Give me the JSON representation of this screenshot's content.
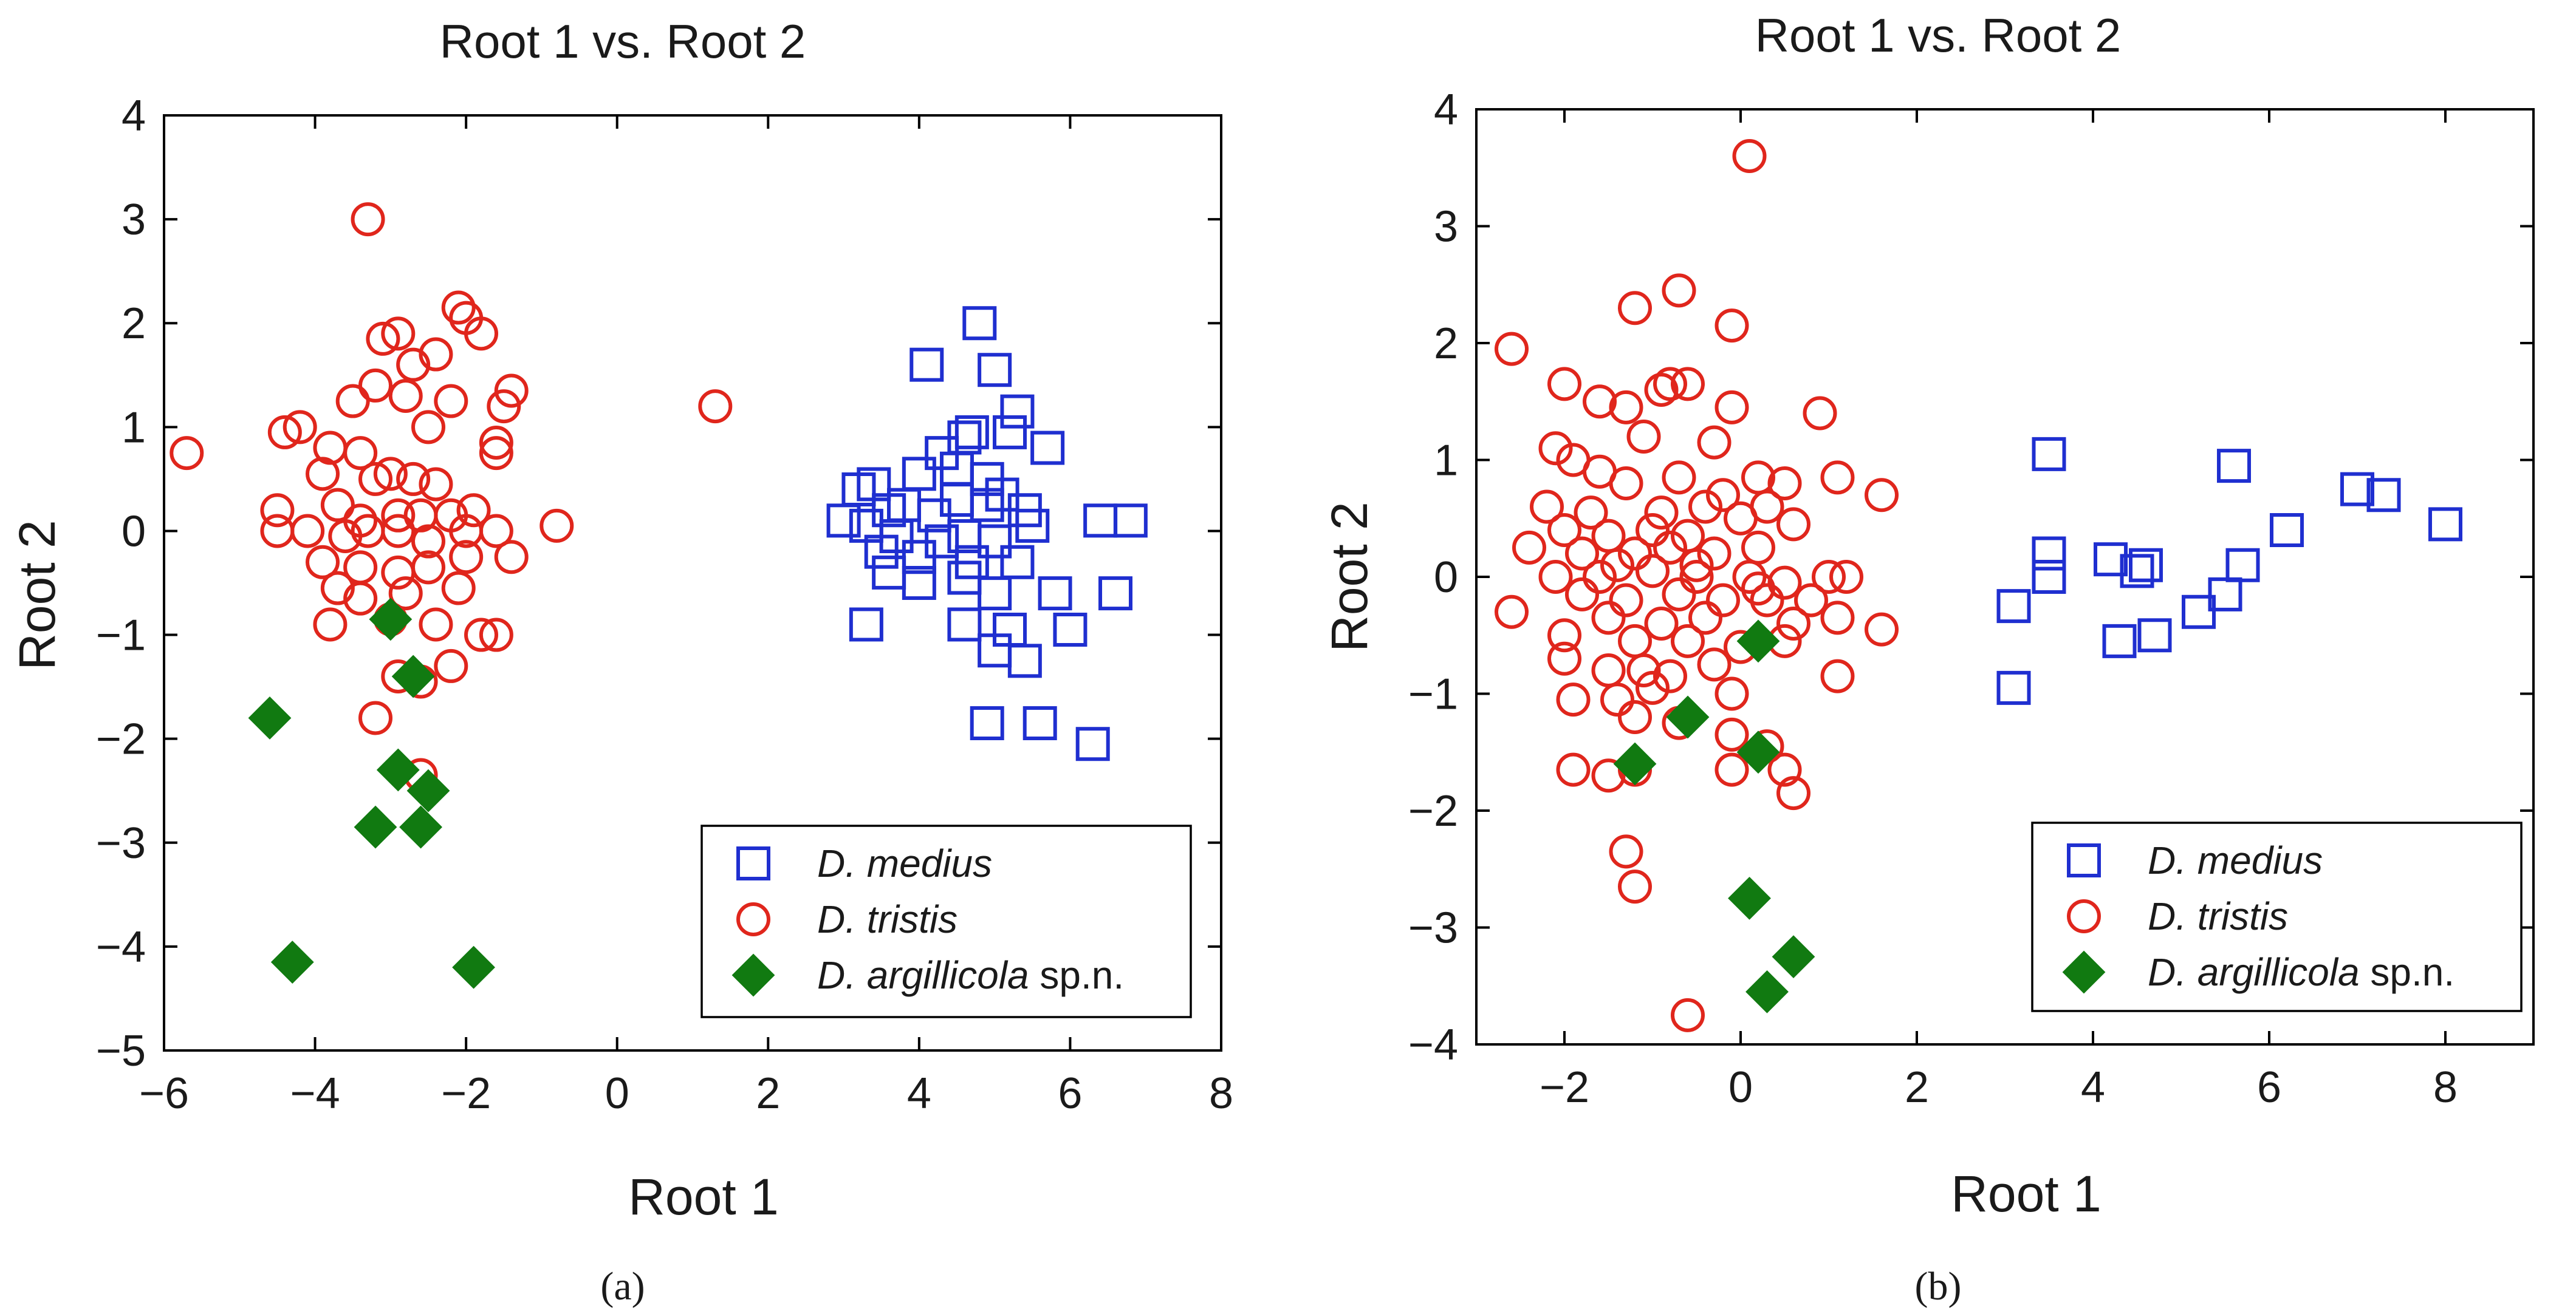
{
  "chart_data": [
    {
      "type": "scatter",
      "title": "Root 1 vs. Root 2",
      "xlabel": "Root 1",
      "ylabel": "Root 2",
      "panel_label": "(a)",
      "xlim": [
        -6,
        8
      ],
      "ylim": [
        -5,
        4
      ],
      "xticks": [
        -6,
        -4,
        -2,
        0,
        2,
        4,
        6,
        8
      ],
      "yticks": [
        -5,
        -4,
        -3,
        -2,
        -1,
        0,
        1,
        2,
        3,
        4
      ],
      "xtick_labels": [
        "−6",
        "−4",
        "−2",
        "0",
        "2",
        "4",
        "6",
        "8"
      ],
      "ytick_labels": [
        "−5",
        "−4",
        "−3",
        "−2",
        "−1",
        "0",
        "1",
        "2",
        "3",
        "4"
      ],
      "legend_position": "bottom-right",
      "series": [
        {
          "name": "D. medius",
          "name_italic": "D. medius",
          "name_suffix": "",
          "marker": "square",
          "color": "#1f2fd0",
          "points": [
            [
              4.8,
              2.0
            ],
            [
              4.1,
              1.6
            ],
            [
              5.0,
              1.55
            ],
            [
              5.3,
              1.15
            ],
            [
              4.6,
              0.9
            ],
            [
              4.3,
              0.75
            ],
            [
              5.2,
              0.95
            ],
            [
              5.7,
              0.8
            ],
            [
              4.5,
              0.6
            ],
            [
              4.9,
              0.5
            ],
            [
              4.0,
              0.55
            ],
            [
              3.4,
              0.45
            ],
            [
              3.2,
              0.4
            ],
            [
              3.8,
              0.25
            ],
            [
              3.6,
              0.2
            ],
            [
              4.2,
              0.15
            ],
            [
              4.9,
              0.25
            ],
            [
              5.1,
              0.35
            ],
            [
              5.4,
              0.2
            ],
            [
              5.5,
              0.05
            ],
            [
              3.0,
              0.1
            ],
            [
              3.3,
              0.05
            ],
            [
              3.7,
              -0.05
            ],
            [
              4.3,
              -0.1
            ],
            [
              4.6,
              -0.05
            ],
            [
              5.0,
              -0.1
            ],
            [
              3.5,
              -0.2
            ],
            [
              4.0,
              -0.25
            ],
            [
              4.7,
              -0.3
            ],
            [
              5.3,
              -0.3
            ],
            [
              3.6,
              -0.4
            ],
            [
              4.0,
              -0.5
            ],
            [
              4.6,
              -0.45
            ],
            [
              5.0,
              -0.6
            ],
            [
              5.8,
              -0.6
            ],
            [
              4.6,
              -0.9
            ],
            [
              5.2,
              -0.95
            ],
            [
              6.0,
              -0.95
            ],
            [
              6.6,
              -0.6
            ],
            [
              3.3,
              -0.9
            ],
            [
              5.0,
              -1.15
            ],
            [
              5.4,
              -1.25
            ],
            [
              4.9,
              -1.85
            ],
            [
              5.6,
              -1.85
            ],
            [
              6.3,
              -2.05
            ],
            [
              6.4,
              0.1
            ],
            [
              6.8,
              0.1
            ],
            [
              4.7,
              0.95
            ],
            [
              4.5,
              0.3
            ]
          ]
        },
        {
          "name": "D. tristis",
          "name_italic": "D. tristis",
          "name_suffix": "",
          "marker": "circle",
          "color": "#e0261c",
          "points": [
            [
              -3.3,
              3.0
            ],
            [
              -2.1,
              2.15
            ],
            [
              -2.0,
              2.05
            ],
            [
              -2.9,
              1.9
            ],
            [
              -3.1,
              1.85
            ],
            [
              -1.8,
              1.9
            ],
            [
              -2.7,
              1.6
            ],
            [
              -3.2,
              1.4
            ],
            [
              -3.5,
              1.25
            ],
            [
              -2.8,
              1.3
            ],
            [
              -2.2,
              1.25
            ],
            [
              -1.4,
              1.35
            ],
            [
              -1.5,
              1.2
            ],
            [
              -4.4,
              0.95
            ],
            [
              -4.2,
              1.0
            ],
            [
              -3.8,
              0.8
            ],
            [
              -3.4,
              0.75
            ],
            [
              -2.5,
              1.0
            ],
            [
              -1.6,
              0.85
            ],
            [
              -1.6,
              0.75
            ],
            [
              -5.7,
              0.75
            ],
            [
              -3.9,
              0.55
            ],
            [
              -3.2,
              0.5
            ],
            [
              -3.0,
              0.55
            ],
            [
              -2.7,
              0.5
            ],
            [
              -2.4,
              0.45
            ],
            [
              -1.9,
              0.2
            ],
            [
              -4.5,
              0.2
            ],
            [
              -3.7,
              0.25
            ],
            [
              -3.4,
              0.1
            ],
            [
              -2.9,
              0.15
            ],
            [
              -2.6,
              0.15
            ],
            [
              -2.2,
              0.15
            ],
            [
              -0.8,
              0.05
            ],
            [
              -4.5,
              0.0
            ],
            [
              -4.1,
              0.0
            ],
            [
              -3.6,
              -0.05
            ],
            [
              -3.3,
              0.0
            ],
            [
              -2.9,
              0.0
            ],
            [
              -2.5,
              -0.1
            ],
            [
              -1.6,
              0.0
            ],
            [
              -1.4,
              -0.25
            ],
            [
              -3.9,
              -0.3
            ],
            [
              -3.4,
              -0.35
            ],
            [
              -2.9,
              -0.4
            ],
            [
              -2.5,
              -0.35
            ],
            [
              -2.0,
              -0.25
            ],
            [
              -3.7,
              -0.55
            ],
            [
              -3.4,
              -0.65
            ],
            [
              -2.8,
              -0.6
            ],
            [
              -2.1,
              -0.55
            ],
            [
              -3.8,
              -0.9
            ],
            [
              -3.0,
              -0.85
            ],
            [
              -2.4,
              -0.9
            ],
            [
              -1.8,
              -1.0
            ],
            [
              -1.6,
              -1.0
            ],
            [
              -2.9,
              -1.4
            ],
            [
              -2.6,
              -1.45
            ],
            [
              -2.2,
              -1.3
            ],
            [
              -3.2,
              -1.8
            ],
            [
              -2.6,
              -2.35
            ],
            [
              1.3,
              1.2
            ],
            [
              -2.4,
              1.7
            ],
            [
              -2.0,
              0.0
            ]
          ]
        },
        {
          "name": "D. argillicola sp.n.",
          "name_italic": "D. argillicola",
          "name_suffix": " sp.n.",
          "marker": "diamond",
          "color": "#117a11",
          "points": [
            [
              -3.0,
              -0.85
            ],
            [
              -2.7,
              -1.4
            ],
            [
              -4.6,
              -1.8
            ],
            [
              -2.9,
              -2.3
            ],
            [
              -2.5,
              -2.5
            ],
            [
              -3.2,
              -2.85
            ],
            [
              -2.6,
              -2.85
            ],
            [
              -4.3,
              -4.15
            ],
            [
              -1.9,
              -4.2
            ]
          ]
        }
      ]
    },
    {
      "type": "scatter",
      "title": "Root 1 vs. Root 2",
      "xlabel": "Root 1",
      "ylabel": "Root 2",
      "panel_label": "(b)",
      "xlim": [
        -3,
        9
      ],
      "ylim": [
        -4,
        4
      ],
      "xticks": [
        -2,
        0,
        2,
        4,
        6,
        8
      ],
      "yticks": [
        -4,
        -3,
        -2,
        -1,
        0,
        1,
        2,
        3,
        4
      ],
      "xtick_labels": [
        "−2",
        "0",
        "2",
        "4",
        "6",
        "8"
      ],
      "ytick_labels": [
        "−4",
        "−3",
        "−2",
        "−1",
        "0",
        "1",
        "2",
        "3",
        "4"
      ],
      "legend_position": "bottom-right",
      "series": [
        {
          "name": "D. medius",
          "name_italic": "D. medius",
          "name_suffix": "",
          "marker": "square",
          "color": "#1f2fd0",
          "points": [
            [
              3.5,
              1.05
            ],
            [
              5.6,
              0.95
            ],
            [
              7.0,
              0.75
            ],
            [
              7.3,
              0.7
            ],
            [
              8.0,
              0.45
            ],
            [
              6.2,
              0.4
            ],
            [
              3.5,
              0.2
            ],
            [
              4.2,
              0.15
            ],
            [
              4.6,
              0.1
            ],
            [
              5.7,
              0.1
            ],
            [
              3.5,
              0.0
            ],
            [
              4.5,
              0.05
            ],
            [
              5.5,
              -0.15
            ],
            [
              3.1,
              -0.25
            ],
            [
              5.2,
              -0.3
            ],
            [
              4.7,
              -0.5
            ],
            [
              4.3,
              -0.55
            ],
            [
              3.1,
              -0.95
            ]
          ]
        },
        {
          "name": "D. tristis",
          "name_italic": "D. tristis",
          "name_suffix": "",
          "marker": "circle",
          "color": "#e0261c",
          "points": [
            [
              0.1,
              3.6
            ],
            [
              -0.7,
              2.45
            ],
            [
              -1.2,
              2.3
            ],
            [
              -0.1,
              2.15
            ],
            [
              -2.6,
              1.95
            ],
            [
              -2.0,
              1.65
            ],
            [
              -0.8,
              1.65
            ],
            [
              -0.6,
              1.65
            ],
            [
              -1.6,
              1.5
            ],
            [
              -1.3,
              1.45
            ],
            [
              -0.9,
              1.6
            ],
            [
              -0.1,
              1.45
            ],
            [
              0.9,
              1.4
            ],
            [
              -1.1,
              1.2
            ],
            [
              -2.1,
              1.1
            ],
            [
              -1.9,
              1.0
            ],
            [
              -0.3,
              1.15
            ],
            [
              -1.6,
              0.9
            ],
            [
              -0.7,
              0.85
            ],
            [
              0.2,
              0.85
            ],
            [
              1.1,
              0.85
            ],
            [
              -1.3,
              0.8
            ],
            [
              0.5,
              0.8
            ],
            [
              -2.2,
              0.6
            ],
            [
              -1.7,
              0.55
            ],
            [
              -0.9,
              0.55
            ],
            [
              -0.4,
              0.6
            ],
            [
              0.3,
              0.6
            ],
            [
              1.6,
              0.7
            ],
            [
              -2.0,
              0.4
            ],
            [
              -1.5,
              0.35
            ],
            [
              -1.0,
              0.4
            ],
            [
              -0.6,
              0.35
            ],
            [
              0.0,
              0.5
            ],
            [
              0.6,
              0.45
            ],
            [
              -2.4,
              0.25
            ],
            [
              -1.8,
              0.2
            ],
            [
              -1.2,
              0.2
            ],
            [
              -0.8,
              0.25
            ],
            [
              -0.3,
              0.2
            ],
            [
              0.2,
              0.25
            ],
            [
              -2.1,
              0.0
            ],
            [
              -1.6,
              0.0
            ],
            [
              -1.0,
              0.05
            ],
            [
              -0.5,
              0.0
            ],
            [
              0.1,
              0.0
            ],
            [
              0.5,
              -0.05
            ],
            [
              1.0,
              0.0
            ],
            [
              1.2,
              0.0
            ],
            [
              -1.8,
              -0.15
            ],
            [
              -1.3,
              -0.2
            ],
            [
              -0.7,
              -0.15
            ],
            [
              -0.2,
              -0.2
            ],
            [
              0.3,
              -0.2
            ],
            [
              0.8,
              -0.2
            ],
            [
              -2.6,
              -0.3
            ],
            [
              -1.5,
              -0.35
            ],
            [
              -0.9,
              -0.4
            ],
            [
              -0.4,
              -0.35
            ],
            [
              0.6,
              -0.4
            ],
            [
              1.1,
              -0.35
            ],
            [
              -2.0,
              -0.5
            ],
            [
              -1.2,
              -0.55
            ],
            [
              -0.6,
              -0.55
            ],
            [
              0.0,
              -0.6
            ],
            [
              0.5,
              -0.55
            ],
            [
              1.6,
              -0.45
            ],
            [
              -2.0,
              -0.7
            ],
            [
              -1.5,
              -0.8
            ],
            [
              -1.1,
              -0.8
            ],
            [
              -0.8,
              -0.85
            ],
            [
              -0.3,
              -0.75
            ],
            [
              -1.9,
              -1.05
            ],
            [
              -1.4,
              -1.05
            ],
            [
              -1.0,
              -0.95
            ],
            [
              -0.1,
              -1.0
            ],
            [
              1.1,
              -0.85
            ],
            [
              -1.2,
              -1.2
            ],
            [
              -0.7,
              -1.25
            ],
            [
              -0.1,
              -1.35
            ],
            [
              0.3,
              -1.45
            ],
            [
              -1.9,
              -1.65
            ],
            [
              -1.5,
              -1.7
            ],
            [
              -1.2,
              -1.65
            ],
            [
              -0.1,
              -1.65
            ],
            [
              0.5,
              -1.65
            ],
            [
              0.6,
              -1.85
            ],
            [
              -1.3,
              -2.35
            ],
            [
              -1.2,
              -2.65
            ],
            [
              -0.6,
              -3.75
            ],
            [
              -0.5,
              0.1
            ],
            [
              0.2,
              -0.1
            ],
            [
              -0.2,
              0.7
            ],
            [
              -1.4,
              0.1
            ]
          ]
        },
        {
          "name": "D. argillicola sp.n.",
          "name_italic": "D. argillicola",
          "name_suffix": " sp.n.",
          "marker": "diamond",
          "color": "#117a11",
          "points": [
            [
              0.2,
              -0.55
            ],
            [
              -0.6,
              -1.2
            ],
            [
              0.2,
              -1.5
            ],
            [
              -1.2,
              -1.6
            ],
            [
              0.1,
              -2.75
            ],
            [
              0.6,
              -3.25
            ],
            [
              0.3,
              -3.55
            ]
          ]
        }
      ]
    }
  ]
}
